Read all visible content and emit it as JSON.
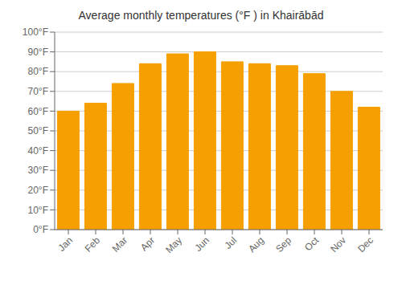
{
  "chart_data": {
    "type": "bar",
    "title": "Average monthly temperatures (°F ) in Khairābād",
    "categories": [
      "Jan",
      "Feb",
      "Mar",
      "Apr",
      "May",
      "Jun",
      "Jul",
      "Aug",
      "Sep",
      "Oct",
      "Nov",
      "Dec"
    ],
    "values": [
      60,
      64,
      74,
      84,
      89,
      90,
      85,
      84,
      83,
      79,
      70,
      62
    ],
    "color": "#F5A000",
    "ylim": [
      0,
      100
    ],
    "yticks": [
      {
        "value": 0,
        "label": "0°F"
      },
      {
        "value": 10,
        "label": "10°F"
      },
      {
        "value": 20,
        "label": "20°F"
      },
      {
        "value": 30,
        "label": "30°F"
      },
      {
        "value": 40,
        "label": "40°F"
      },
      {
        "value": 50,
        "label": "50°F"
      },
      {
        "value": 60,
        "label": "60°F"
      },
      {
        "value": 70,
        "label": "70°F"
      },
      {
        "value": 80,
        "label": "80°F"
      },
      {
        "value": 90,
        "label": "90°F"
      },
      {
        "value": 100,
        "label": "100°F"
      }
    ],
    "grid": true
  }
}
